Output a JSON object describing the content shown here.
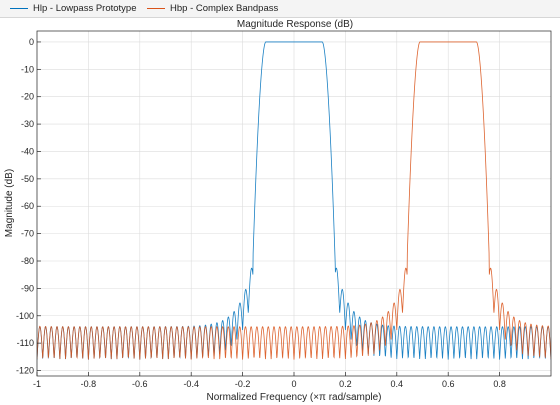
{
  "legend": {
    "items": [
      {
        "label": "Hlp - Lowpass Prototype",
        "color": "#0072BD"
      },
      {
        "label": "Hbp - Complex Bandpass",
        "color": "#D95319"
      }
    ]
  },
  "chart_data": {
    "type": "line",
    "title": "Magnitude Response (dB)",
    "xlabel": "Normalized Frequency (×π rad/sample)",
    "ylabel": "Magnitude (dB)",
    "xlim": [
      -1,
      1
    ],
    "ylim": [
      -122,
      4
    ],
    "xticks": [
      -1,
      -0.8,
      -0.6,
      -0.4,
      -0.2,
      0,
      0.2,
      0.4,
      0.6,
      0.8
    ],
    "xtick_labels": [
      "-1",
      "-0.8",
      "-0.6",
      "-0.4",
      "-0.2",
      "0",
      "0.2",
      "0.4",
      "0.6",
      "0.8"
    ],
    "yticks": [
      0,
      -10,
      -20,
      -30,
      -40,
      -50,
      -60,
      -70,
      -80,
      -90,
      -100,
      -110,
      -120
    ],
    "ytick_labels": [
      "0",
      "-10",
      "-20",
      "-30",
      "-40",
      "-50",
      "-60",
      "-70",
      "-80",
      "-90",
      "-100",
      "-110",
      "-120"
    ],
    "grid": true,
    "legend_position": "top",
    "series": [
      {
        "name": "Hlp - Lowpass Prototype",
        "color": "#0072BD",
        "passband": [
          -0.11,
          0.11
        ],
        "stopband_edges": [
          -0.16,
          0.16
        ],
        "edge_level_db": -80,
        "far_level_db": -104,
        "ripple_depth_db": 12
      },
      {
        "name": "Hbp - Complex Bandpass",
        "color": "#D95319",
        "passband": [
          0.49,
          0.71
        ],
        "stopband_edges": [
          0.44,
          0.76
        ],
        "edge_level_db": -80,
        "far_level_db": -104,
        "ripple_depth_db": 12
      }
    ]
  }
}
